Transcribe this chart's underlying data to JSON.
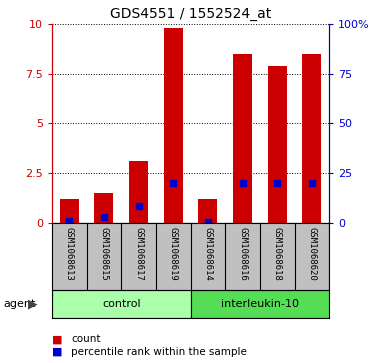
{
  "title": "GDS4551 / 1552524_at",
  "samples": [
    "GSM1068613",
    "GSM1068615",
    "GSM1068617",
    "GSM1068619",
    "GSM1068614",
    "GSM1068616",
    "GSM1068618",
    "GSM1068620"
  ],
  "count_values": [
    1.2,
    1.5,
    3.1,
    9.8,
    1.2,
    8.5,
    7.9,
    8.5
  ],
  "percentile_values": [
    0.12,
    0.32,
    0.85,
    2.0,
    0.06,
    2.0,
    2.0,
    2.0
  ],
  "bar_color": "#CC0000",
  "percentile_color": "#0000CC",
  "bar_width": 0.55,
  "ylim_left": [
    0,
    10
  ],
  "ylim_right": [
    0,
    100
  ],
  "yticks_left": [
    0,
    2.5,
    5,
    7.5,
    10
  ],
  "yticks_right": [
    0,
    25,
    50,
    75,
    100
  ],
  "ytick_labels_right": [
    "0",
    "25",
    "50",
    "75",
    "100%"
  ],
  "ytick_labels_left": [
    "0",
    "2.5",
    "5",
    "7.5",
    "10"
  ],
  "left_axis_color": "#CC0000",
  "right_axis_color": "#0000CC",
  "legend_count_label": "count",
  "legend_percentile_label": "percentile rank within the sample",
  "xlabel_area_color": "#C0C0C0",
  "control_color": "#AAFFAA",
  "il10_color": "#55DD55",
  "grid_color": "#000000",
  "group_split": 3.5,
  "control_label": "control",
  "il10_label": "interleukin-10"
}
